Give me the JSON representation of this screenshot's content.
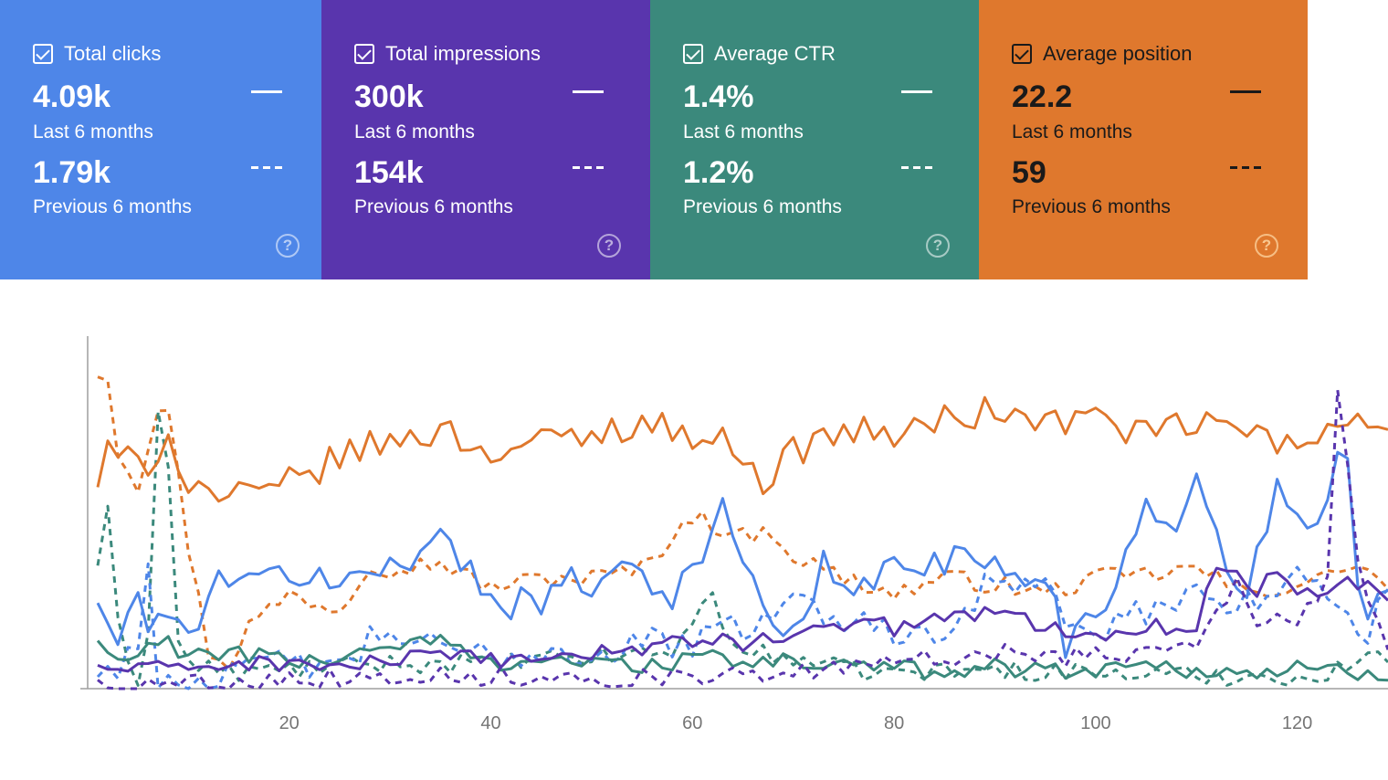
{
  "cards": [
    {
      "label": "Total clicks",
      "current": "4.09k",
      "current_period": "Last 6 months",
      "previous": "1.79k",
      "previous_period": "Previous 6 months",
      "color": "#4e86e8",
      "text_color": "#ffffff",
      "icon": "help-icon"
    },
    {
      "label": "Total impressions",
      "current": "300k",
      "current_period": "Last 6 months",
      "previous": "154k",
      "previous_period": "Previous 6 months",
      "color": "#5935ad",
      "text_color": "#ffffff",
      "icon": "help-icon"
    },
    {
      "label": "Average CTR",
      "current": "1.4%",
      "current_period": "Last 6 months",
      "previous": "1.2%",
      "previous_period": "Previous 6 months",
      "color": "#3b897c",
      "text_color": "#ffffff",
      "icon": "help-icon"
    },
    {
      "label": "Average position",
      "current": "22.2",
      "current_period": "Last 6 months",
      "previous": "59",
      "previous_period": "Previous 6 months",
      "color": "#df782d",
      "text_color": "#1a1a1a",
      "icon": "help-icon"
    }
  ],
  "chart_data": {
    "type": "line",
    "xlim": [
      0,
      129
    ],
    "ylim": [
      0,
      100
    ],
    "xticks": [
      20,
      40,
      60,
      80,
      100,
      120
    ],
    "grid": false,
    "legend": "none",
    "series": [
      {
        "style": "dashed",
        "color": "#df782d",
        "anchors": [
          [
            1,
            100
          ],
          [
            2,
            100
          ],
          [
            3,
            75
          ],
          [
            5,
            65
          ],
          [
            7,
            90
          ],
          [
            8,
            88
          ],
          [
            10,
            45
          ],
          [
            12,
            12
          ],
          [
            14,
            8
          ],
          [
            16,
            20
          ],
          [
            20,
            30
          ],
          [
            25,
            25
          ],
          [
            28,
            40
          ],
          [
            30,
            38
          ],
          [
            35,
            40
          ],
          [
            40,
            32
          ],
          [
            45,
            35
          ],
          [
            50,
            35
          ],
          [
            55,
            38
          ],
          [
            60,
            55
          ],
          [
            62,
            52
          ],
          [
            65,
            48
          ],
          [
            68,
            50
          ],
          [
            70,
            42
          ],
          [
            75,
            35
          ],
          [
            80,
            30
          ],
          [
            85,
            35
          ],
          [
            90,
            33
          ],
          [
            95,
            30
          ],
          [
            100,
            35
          ],
          [
            105,
            36
          ],
          [
            110,
            38
          ],
          [
            115,
            30
          ],
          [
            120,
            33
          ],
          [
            123,
            35
          ],
          [
            125,
            40
          ],
          [
            129,
            33
          ]
        ],
        "jitter": 3
      },
      {
        "style": "dashed",
        "color": "#3b897c",
        "anchors": [
          [
            1,
            40
          ],
          [
            2,
            55
          ],
          [
            3,
            20
          ],
          [
            5,
            2
          ],
          [
            6,
            20
          ],
          [
            7,
            87
          ],
          [
            8,
            70
          ],
          [
            9,
            15
          ],
          [
            10,
            8
          ],
          [
            14,
            5
          ],
          [
            20,
            6
          ],
          [
            30,
            8
          ],
          [
            40,
            8
          ],
          [
            50,
            10
          ],
          [
            58,
            12
          ],
          [
            60,
            20
          ],
          [
            62,
            32
          ],
          [
            64,
            12
          ],
          [
            70,
            10
          ],
          [
            75,
            6
          ],
          [
            80,
            5
          ],
          [
            90,
            6
          ],
          [
            100,
            5
          ],
          [
            110,
            4
          ],
          [
            120,
            4
          ],
          [
            122,
            2
          ],
          [
            125,
            8
          ],
          [
            129,
            10
          ]
        ],
        "jitter": 3
      },
      {
        "style": "solid",
        "color": "#df782d",
        "anchors": [
          [
            1,
            65
          ],
          [
            2,
            75
          ],
          [
            3,
            72
          ],
          [
            6,
            72
          ],
          [
            8,
            80
          ],
          [
            10,
            65
          ],
          [
            14,
            60
          ],
          [
            18,
            62
          ],
          [
            22,
            68
          ],
          [
            26,
            75
          ],
          [
            30,
            78
          ],
          [
            35,
            82
          ],
          [
            40,
            75
          ],
          [
            45,
            78
          ],
          [
            50,
            80
          ],
          [
            55,
            85
          ],
          [
            60,
            80
          ],
          [
            65,
            76
          ],
          [
            67,
            65
          ],
          [
            70,
            75
          ],
          [
            75,
            82
          ],
          [
            80,
            80
          ],
          [
            85,
            85
          ],
          [
            90,
            88
          ],
          [
            95,
            84
          ],
          [
            100,
            86
          ],
          [
            105,
            80
          ],
          [
            110,
            84
          ],
          [
            115,
            82
          ],
          [
            120,
            75
          ],
          [
            123,
            82
          ],
          [
            126,
            88
          ],
          [
            129,
            85
          ]
        ],
        "jitter": 5
      },
      {
        "style": "solid",
        "color": "#4e86e8",
        "anchors": [
          [
            1,
            28
          ],
          [
            2,
            18
          ],
          [
            3,
            16
          ],
          [
            5,
            25
          ],
          [
            8,
            22
          ],
          [
            10,
            15
          ],
          [
            13,
            40
          ],
          [
            15,
            30
          ],
          [
            20,
            38
          ],
          [
            25,
            32
          ],
          [
            30,
            40
          ],
          [
            35,
            48
          ],
          [
            38,
            35
          ],
          [
            42,
            28
          ],
          [
            46,
            30
          ],
          [
            50,
            35
          ],
          [
            54,
            40
          ],
          [
            58,
            30
          ],
          [
            60,
            38
          ],
          [
            63,
            55
          ],
          [
            66,
            32
          ],
          [
            70,
            16
          ],
          [
            73,
            38
          ],
          [
            77,
            30
          ],
          [
            80,
            40
          ],
          [
            85,
            42
          ],
          [
            90,
            38
          ],
          [
            95,
            35
          ],
          [
            97,
            15
          ],
          [
            100,
            26
          ],
          [
            103,
            40
          ],
          [
            105,
            60
          ],
          [
            108,
            55
          ],
          [
            110,
            62
          ],
          [
            112,
            50
          ],
          [
            114,
            28
          ],
          [
            116,
            40
          ],
          [
            118,
            70
          ],
          [
            119,
            55
          ],
          [
            121,
            50
          ],
          [
            123,
            65
          ],
          [
            125,
            75
          ],
          [
            126,
            35
          ],
          [
            127,
            25
          ],
          [
            129,
            35
          ]
        ],
        "jitter": 6
      },
      {
        "style": "dashed",
        "color": "#4e86e8",
        "anchors": [
          [
            1,
            4
          ],
          [
            3,
            8
          ],
          [
            5,
            15
          ],
          [
            6,
            35
          ],
          [
            7,
            5
          ],
          [
            9,
            2
          ],
          [
            15,
            4
          ],
          [
            20,
            10
          ],
          [
            25,
            5
          ],
          [
            28,
            15
          ],
          [
            30,
            18
          ],
          [
            35,
            12
          ],
          [
            40,
            10
          ],
          [
            45,
            12
          ],
          [
            50,
            10
          ],
          [
            55,
            15
          ],
          [
            60,
            14
          ],
          [
            65,
            20
          ],
          [
            70,
            28
          ],
          [
            75,
            22
          ],
          [
            80,
            18
          ],
          [
            85,
            20
          ],
          [
            90,
            35
          ],
          [
            95,
            30
          ],
          [
            100,
            15
          ],
          [
            105,
            25
          ],
          [
            110,
            30
          ],
          [
            115,
            28
          ],
          [
            120,
            35
          ],
          [
            125,
            25
          ],
          [
            127,
            15
          ],
          [
            129,
            35
          ]
        ],
        "jitter": 5
      },
      {
        "style": "solid",
        "color": "#3b897c",
        "anchors": [
          [
            1,
            15
          ],
          [
            3,
            8
          ],
          [
            5,
            10
          ],
          [
            8,
            16
          ],
          [
            10,
            9
          ],
          [
            15,
            12
          ],
          [
            20,
            8
          ],
          [
            25,
            10
          ],
          [
            30,
            14
          ],
          [
            35,
            15
          ],
          [
            40,
            8
          ],
          [
            45,
            10
          ],
          [
            50,
            8
          ],
          [
            55,
            7
          ],
          [
            60,
            10
          ],
          [
            65,
            8
          ],
          [
            70,
            9
          ],
          [
            75,
            7
          ],
          [
            80,
            6
          ],
          [
            85,
            6
          ],
          [
            90,
            7
          ],
          [
            95,
            6
          ],
          [
            100,
            6
          ],
          [
            105,
            8
          ],
          [
            110,
            6
          ],
          [
            115,
            5
          ],
          [
            120,
            6
          ],
          [
            125,
            5
          ],
          [
            129,
            5
          ]
        ],
        "jitter": 3
      },
      {
        "style": "solid",
        "color": "#5935ad",
        "anchors": [
          [
            1,
            7
          ],
          [
            5,
            6
          ],
          [
            10,
            7
          ],
          [
            15,
            8
          ],
          [
            20,
            8
          ],
          [
            25,
            7
          ],
          [
            30,
            9
          ],
          [
            35,
            10
          ],
          [
            40,
            9
          ],
          [
            45,
            10
          ],
          [
            50,
            11
          ],
          [
            55,
            13
          ],
          [
            60,
            15
          ],
          [
            63,
            16
          ],
          [
            65,
            14
          ],
          [
            70,
            17
          ],
          [
            73,
            20
          ],
          [
            75,
            18
          ],
          [
            78,
            22
          ],
          [
            80,
            19
          ],
          [
            85,
            23
          ],
          [
            90,
            24
          ],
          [
            95,
            20
          ],
          [
            100,
            17
          ],
          [
            105,
            20
          ],
          [
            110,
            19
          ],
          [
            112,
            40
          ],
          [
            114,
            36
          ],
          [
            116,
            30
          ],
          [
            118,
            38
          ],
          [
            120,
            32
          ],
          [
            122,
            30
          ],
          [
            125,
            35
          ],
          [
            129,
            30
          ]
        ],
        "jitter": 2.5
      },
      {
        "style": "dashed",
        "color": "#5935ad",
        "anchors": [
          [
            1,
            2
          ],
          [
            5,
            1
          ],
          [
            10,
            2
          ],
          [
            15,
            3
          ],
          [
            20,
            3
          ],
          [
            30,
            4
          ],
          [
            40,
            4
          ],
          [
            45,
            4
          ],
          [
            50,
            3
          ],
          [
            55,
            4
          ],
          [
            60,
            3
          ],
          [
            65,
            4
          ],
          [
            70,
            5
          ],
          [
            75,
            6
          ],
          [
            80,
            8
          ],
          [
            85,
            10
          ],
          [
            90,
            12
          ],
          [
            95,
            10
          ],
          [
            100,
            10
          ],
          [
            105,
            12
          ],
          [
            110,
            15
          ],
          [
            112,
            22
          ],
          [
            114,
            38
          ],
          [
            116,
            20
          ],
          [
            118,
            25
          ],
          [
            120,
            22
          ],
          [
            122,
            30
          ],
          [
            123,
            35
          ],
          [
            124,
            92
          ],
          [
            125,
            70
          ],
          [
            126,
            38
          ],
          [
            127,
            25
          ],
          [
            129,
            15
          ]
        ],
        "jitter": 3
      }
    ]
  }
}
